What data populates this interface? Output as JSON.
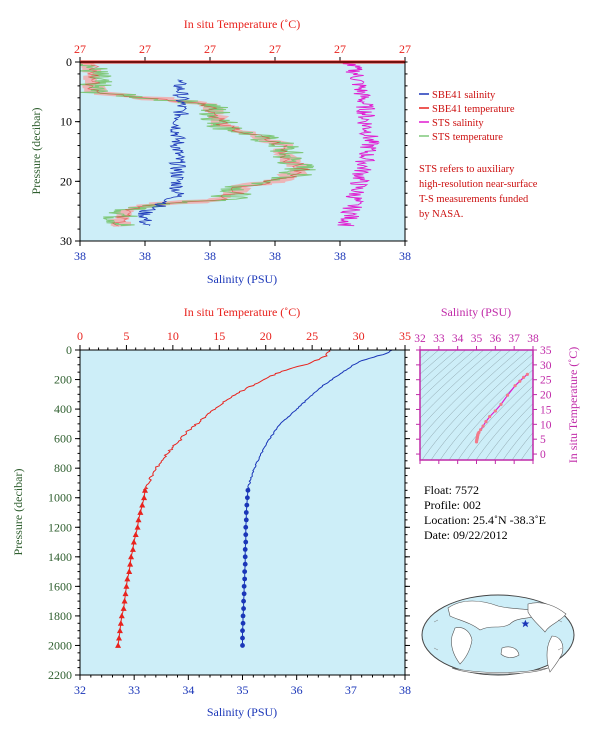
{
  "colors": {
    "panel_bg": "#cdeef8",
    "temperature": "#e8231e",
    "salinity": "#1a36b8",
    "sts_salinity": "#e01bd0",
    "sts_temperature": "#7fc87a",
    "sts_temp_fill": "#f4a6a6",
    "pressure_axis": "#2f5f2f",
    "inset_axis": "#c02aa8",
    "note_text": "#cc1010"
  },
  "chart_data": [
    {
      "id": "near_surface",
      "type": "line",
      "top_label": "In situ Temperature (˚C)",
      "top_ticks": [
        "27",
        "27",
        "27",
        "27",
        "27",
        "27"
      ],
      "bottom_label": "Salinity (PSU)",
      "bottom_ticks": [
        "38",
        "38",
        "38",
        "38",
        "38",
        "38"
      ],
      "ylabel": "Pressure (decibar)",
      "ylim": [
        0,
        30
      ],
      "yticks": [
        0,
        10,
        20,
        30
      ],
      "legend": [
        {
          "label": "SBE41 salinity",
          "color": "#1a36b8"
        },
        {
          "label": "SBE41 temperature",
          "color": "#e8231e"
        },
        {
          "label": "STS salinity",
          "color": "#e01bd0"
        },
        {
          "label": "STS temperature",
          "color": "#7fc87a"
        }
      ],
      "note": [
        "STS refers to auxiliary",
        "high-resolution near-surface",
        "T-S measurements funded",
        "by NASA."
      ],
      "sts_temperature_profile": {
        "pressure": [
          0,
          2,
          5,
          6,
          7,
          9,
          11,
          12.5,
          14,
          16,
          18,
          19.5,
          21,
          23,
          24,
          25,
          26,
          27,
          28
        ],
        "position": [
          0.03,
          0.04,
          0.04,
          0.2,
          0.4,
          0.42,
          0.45,
          0.55,
          0.62,
          0.64,
          0.68,
          0.64,
          0.5,
          0.45,
          0.22,
          0.15,
          0.12,
          0.13,
          0.13
        ]
      },
      "sbe41_salinity_profile": {
        "pressure": [
          3,
          5,
          7,
          9,
          11,
          13,
          15,
          17,
          19,
          21,
          22.5,
          24,
          25,
          26,
          27.5
        ],
        "position": [
          0.3,
          0.31,
          0.31,
          0.31,
          0.3,
          0.3,
          0.3,
          0.3,
          0.3,
          0.3,
          0.3,
          0.25,
          0.2,
          0.2,
          0.2
        ]
      },
      "sts_salinity_profile": {
        "pressure": [
          0,
          2,
          4,
          6,
          8,
          10,
          12,
          14,
          16,
          18,
          20,
          22,
          24,
          26,
          27.5
        ],
        "position": [
          0.83,
          0.85,
          0.86,
          0.87,
          0.88,
          0.88,
          0.89,
          0.89,
          0.88,
          0.87,
          0.86,
          0.85,
          0.84,
          0.83,
          0.82
        ]
      }
    },
    {
      "id": "full_profile",
      "type": "line",
      "top_label": "In situ Temperature (˚C)",
      "xlim_temperature": [
        0,
        35
      ],
      "temperature_ticks": [
        0,
        5,
        10,
        15,
        20,
        25,
        30,
        35
      ],
      "bottom_label": "Salinity (PSU)",
      "xlim_salinity": [
        32,
        38
      ],
      "salinity_ticks": [
        32,
        33,
        34,
        35,
        36,
        37,
        38
      ],
      "ylabel": "Pressure (decibar)",
      "ylim": [
        0,
        2200
      ],
      "yticks": [
        0,
        200,
        400,
        600,
        800,
        1000,
        1200,
        1400,
        1600,
        1800,
        2000,
        2200
      ],
      "series": [
        {
          "name": "Temperature",
          "unit": "˚C",
          "pressure": [
            0,
            20,
            40,
            60,
            80,
            100,
            120,
            150,
            180,
            200,
            250,
            300,
            350,
            400,
            450,
            500,
            550,
            600,
            650,
            700,
            750,
            800,
            850,
            900,
            950,
            1000,
            1050,
            1100,
            1150,
            1200,
            1250,
            1300,
            1350,
            1400,
            1450,
            1500,
            1550,
            1600,
            1650,
            1700,
            1750,
            1800,
            1850,
            1900,
            1950,
            2000
          ],
          "values": [
            26.8,
            26.7,
            26.5,
            25.8,
            25.0,
            24.2,
            23.0,
            21.5,
            20.5,
            19.8,
            18.3,
            16.7,
            15.5,
            14.5,
            13.5,
            12.6,
            11.6,
            10.9,
            10.1,
            9.4,
            8.8,
            8.2,
            7.8,
            7.3,
            7.0,
            6.9,
            6.7,
            6.5,
            6.3,
            6.2,
            6.0,
            5.8,
            5.7,
            5.5,
            5.4,
            5.3,
            5.1,
            5.0,
            4.9,
            4.8,
            4.7,
            4.5,
            4.4,
            4.3,
            4.2,
            4.1
          ],
          "marker_from_pressure": 950,
          "marker": "triangle"
        },
        {
          "name": "Salinity",
          "unit": "PSU",
          "pressure": [
            0,
            20,
            40,
            60,
            80,
            100,
            150,
            200,
            250,
            300,
            350,
            400,
            450,
            500,
            550,
            600,
            650,
            700,
            750,
            800,
            850,
            900,
            950,
            1000,
            1050,
            1100,
            1150,
            1200,
            1250,
            1300,
            1350,
            1400,
            1450,
            1500,
            1550,
            1600,
            1650,
            1700,
            1750,
            1800,
            1850,
            1900,
            1950,
            2000
          ],
          "values": [
            37.75,
            37.7,
            37.5,
            37.3,
            37.15,
            37.05,
            36.85,
            36.65,
            36.45,
            36.3,
            36.15,
            36.0,
            35.85,
            35.7,
            35.6,
            35.5,
            35.42,
            35.35,
            35.28,
            35.22,
            35.17,
            35.13,
            35.1,
            35.09,
            35.08,
            35.07,
            35.07,
            35.06,
            35.06,
            35.06,
            35.05,
            35.05,
            35.05,
            35.04,
            35.04,
            35.03,
            35.03,
            35.02,
            35.02,
            35.01,
            35.01,
            35.0,
            35.0,
            35.0
          ],
          "marker_from_pressure": 950,
          "marker": "circle"
        }
      ]
    },
    {
      "id": "ts_diagram",
      "type": "scatter",
      "top_label": "Salinity (PSU)",
      "xlim": [
        32,
        38
      ],
      "xticks": [
        32,
        33,
        34,
        35,
        36,
        37,
        38
      ],
      "right_label": "In situ Temperature (˚C)",
      "ylim": [
        -2,
        35
      ],
      "yticks": [
        0,
        5,
        10,
        15,
        20,
        25,
        30,
        35
      ],
      "points": {
        "salinity": [
          37.7,
          37.5,
          37.3,
          37.05,
          36.65,
          36.3,
          36.0,
          35.7,
          35.5,
          35.35,
          35.22,
          35.13,
          35.09,
          35.07,
          35.06,
          35.05,
          35.04,
          35.03,
          35.02,
          35.01,
          35.0
        ],
        "temperature": [
          26.8,
          25.8,
          24.5,
          23.0,
          19.8,
          16.7,
          14.5,
          12.6,
          10.9,
          9.4,
          8.2,
          7.3,
          6.9,
          6.5,
          6.2,
          5.8,
          5.5,
          5.2,
          4.9,
          4.6,
          4.1
        ]
      }
    }
  ],
  "float_info": {
    "float": "Float: 7572",
    "profile": "Profile: 002",
    "location": "Location: 25.4˚N -38.3˚E",
    "date": "Date: 09/22/2012"
  },
  "map": {
    "marker_lat": 25.4,
    "marker_lon": -38.3
  }
}
